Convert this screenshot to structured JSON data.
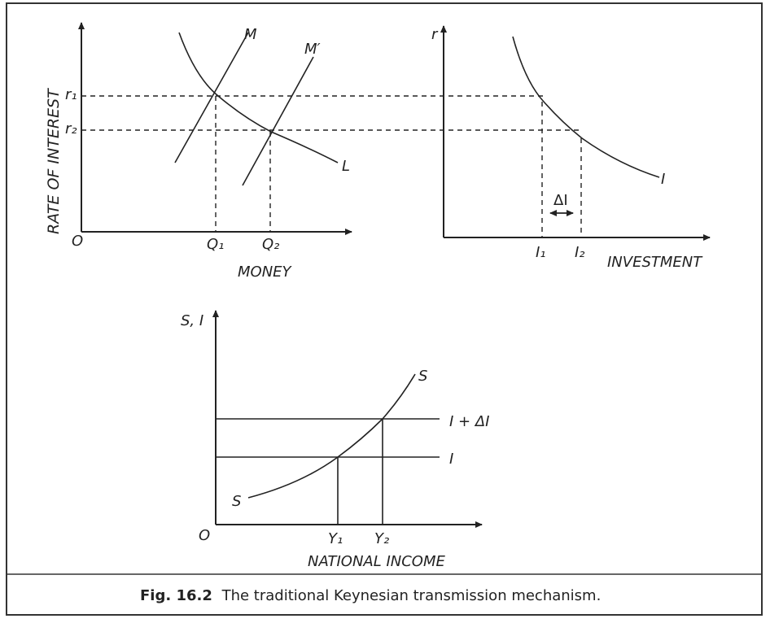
{
  "money_market": {
    "y_axis_label": "RATE OF INTEREST",
    "x_axis_label": "MONEY",
    "origin": "O",
    "money_supply_1": "M",
    "money_supply_2": "M′",
    "demand_curve": "L",
    "rate_1": "r₁",
    "rate_2": "r₂",
    "quantity_1": "Q₁",
    "quantity_2": "Q₂"
  },
  "investment": {
    "y_axis_label": "r",
    "x_axis_label": "INVESTMENT",
    "curve": "I",
    "change": "ΔI",
    "investment_1": "I₁",
    "investment_2": "I₂"
  },
  "income": {
    "y_axis_label": "S, I",
    "x_axis_label": "NATIONAL INCOME",
    "origin": "O",
    "saving_top": "S",
    "saving_bottom": "S",
    "investment_high": "I + ΔI",
    "investment_low": "I",
    "income_1": "Y₁",
    "income_2": "Y₂"
  },
  "caption": {
    "figure": "Fig. 16.2",
    "text": "The traditional Keynesian transmission mechanism."
  }
}
